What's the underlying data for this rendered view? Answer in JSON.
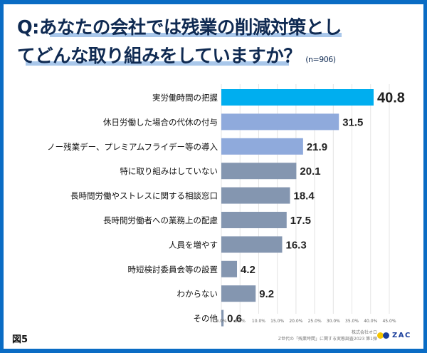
{
  "title": {
    "line1": "Q:あなたの会社では残業の削減対策とし",
    "line2": "てどんな取り組みをしていますか？",
    "sample": "(n=906)"
  },
  "footer": {
    "figure_label": "図5",
    "company": "株式会社オロ",
    "survey": "Z世代の「残業時間」に関する実態調査2023 第1弾",
    "logo_text": "ZAC"
  },
  "colors": {
    "frame": "#0a6cc4",
    "highlight_bar": "#00aeef",
    "secondary_bar": "#8faadc",
    "default_bar": "#8496b0",
    "title_text": "#0f2a52",
    "title_underline": "#a9c7ea"
  },
  "chart_data": {
    "type": "bar",
    "orientation": "horizontal",
    "title": "Q:あなたの会社では残業の削減対策としてどんな取り組みをしていますか？",
    "xlabel": "",
    "ylabel": "",
    "xlim": [
      0,
      45
    ],
    "x_ticks": [
      "0.0%",
      "5.0%",
      "10.0%",
      "15.0%",
      "20.0%",
      "25.0%",
      "30.0%",
      "35.0%",
      "40.0%",
      "45.0%"
    ],
    "grid": true,
    "categories": [
      "実労働時間の把握",
      "休日労働した場合の代休の付与",
      "ノー残業デー、プレミアムフライデー等の導入",
      "特に取り組みはしていない",
      "長時間労働やストレスに関する相談窓口",
      "長時間労働者への業務上の配慮",
      "人員を増やす",
      "時短検討委員会等の設置",
      "わからない",
      "その他"
    ],
    "values": [
      40.8,
      31.5,
      21.9,
      20.1,
      18.4,
      17.5,
      16.3,
      4.2,
      9.2,
      0.6
    ],
    "value_labels": [
      "40.8",
      "31.5",
      "21.9",
      "20.1",
      "18.4",
      "17.5",
      "16.3",
      "4.2",
      "9.2",
      "0.6"
    ],
    "bar_color_groups": [
      "highlight",
      "secondary",
      "secondary",
      "default",
      "default",
      "default",
      "default",
      "default",
      "default",
      "default"
    ],
    "unit": "%"
  }
}
